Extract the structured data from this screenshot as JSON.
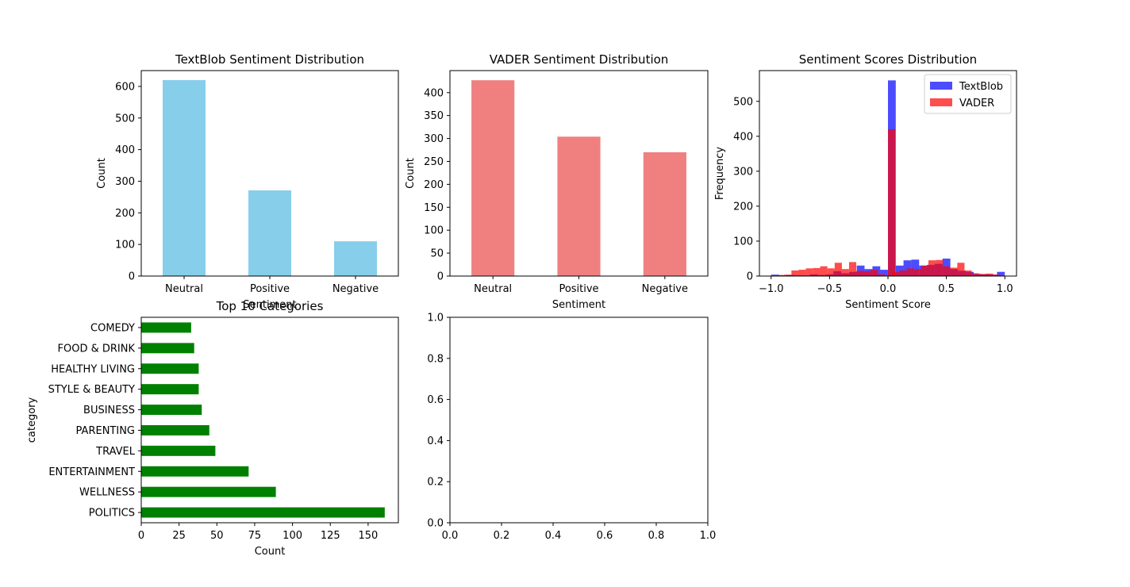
{
  "chart_data": [
    {
      "id": "textblob",
      "type": "bar",
      "title": "TextBlob Sentiment Distribution",
      "xlabel": "Sentiment",
      "ylabel": "Count",
      "categories": [
        "Neutral",
        "Positive",
        "Negative"
      ],
      "values": [
        620,
        271,
        110
      ],
      "ylim": [
        0,
        650
      ],
      "yticks": [
        0,
        100,
        200,
        300,
        400,
        500,
        600
      ],
      "color": "#87CEEB",
      "grid": false
    },
    {
      "id": "vader",
      "type": "bar",
      "title": "VADER Sentiment Distribution",
      "xlabel": "Sentiment",
      "ylabel": "Count",
      "categories": [
        "Neutral",
        "Positive",
        "Negative"
      ],
      "values": [
        427,
        304,
        270
      ],
      "ylim": [
        0,
        448
      ],
      "yticks": [
        0,
        50,
        100,
        150,
        200,
        250,
        300,
        350,
        400
      ],
      "color": "#F08080",
      "grid": false
    },
    {
      "id": "hist",
      "type": "histogram",
      "title": "Sentiment Scores Distribution",
      "xlabel": "Sentiment Score",
      "ylabel": "Frequency",
      "xlim": [
        -1.1,
        1.1
      ],
      "ylim": [
        0,
        588
      ],
      "xticks": [
        -1.0,
        -0.5,
        0.0,
        0.5,
        1.0
      ],
      "yticks": [
        0,
        100,
        200,
        300,
        400,
        500
      ],
      "legend_position": "top-right",
      "series": [
        {
          "name": "TextBlob",
          "color": "#0000FF",
          "bin_width": 0.0667,
          "bins": [
            {
              "x0": -1.0,
              "count": 4
            },
            {
              "x0": -0.933,
              "count": 2
            },
            {
              "x0": -0.867,
              "count": 3
            },
            {
              "x0": -0.8,
              "count": 2
            },
            {
              "x0": -0.733,
              "count": 2
            },
            {
              "x0": -0.667,
              "count": 5
            },
            {
              "x0": -0.6,
              "count": 3
            },
            {
              "x0": -0.533,
              "count": 5
            },
            {
              "x0": -0.467,
              "count": 14
            },
            {
              "x0": -0.4,
              "count": 8
            },
            {
              "x0": -0.333,
              "count": 12
            },
            {
              "x0": -0.267,
              "count": 30
            },
            {
              "x0": -0.2,
              "count": 20
            },
            {
              "x0": -0.133,
              "count": 28
            },
            {
              "x0": -0.067,
              "count": 18
            },
            {
              "x0": 0.0,
              "count": 560
            },
            {
              "x0": 0.067,
              "count": 30
            },
            {
              "x0": 0.133,
              "count": 45
            },
            {
              "x0": 0.2,
              "count": 47
            },
            {
              "x0": 0.267,
              "count": 30
            },
            {
              "x0": 0.333,
              "count": 32
            },
            {
              "x0": 0.4,
              "count": 35
            },
            {
              "x0": 0.467,
              "count": 50
            },
            {
              "x0": 0.533,
              "count": 20
            },
            {
              "x0": 0.6,
              "count": 15
            },
            {
              "x0": 0.667,
              "count": 12
            },
            {
              "x0": 0.733,
              "count": 6
            },
            {
              "x0": 0.8,
              "count": 5
            },
            {
              "x0": 0.867,
              "count": 4
            },
            {
              "x0": 0.933,
              "count": 12
            }
          ]
        },
        {
          "name": "VADER",
          "color": "#FF0000",
          "bin_width": 0.0617,
          "bins": [
            {
              "x0": -0.95,
              "count": 3
            },
            {
              "x0": -0.888,
              "count": 4
            },
            {
              "x0": -0.826,
              "count": 16
            },
            {
              "x0": -0.765,
              "count": 18
            },
            {
              "x0": -0.703,
              "count": 22
            },
            {
              "x0": -0.641,
              "count": 23
            },
            {
              "x0": -0.58,
              "count": 28
            },
            {
              "x0": -0.518,
              "count": 22
            },
            {
              "x0": -0.456,
              "count": 38
            },
            {
              "x0": -0.395,
              "count": 20
            },
            {
              "x0": -0.333,
              "count": 40
            },
            {
              "x0": -0.271,
              "count": 15
            },
            {
              "x0": -0.209,
              "count": 14
            },
            {
              "x0": -0.148,
              "count": 18
            },
            {
              "x0": -0.086,
              "count": 5
            },
            {
              "x0": 0.0,
              "count": 420
            },
            {
              "x0": 0.038,
              "count": 12
            },
            {
              "x0": 0.099,
              "count": 16
            },
            {
              "x0": 0.161,
              "count": 22
            },
            {
              "x0": 0.223,
              "count": 20
            },
            {
              "x0": 0.284,
              "count": 30
            },
            {
              "x0": 0.346,
              "count": 45
            },
            {
              "x0": 0.408,
              "count": 46
            },
            {
              "x0": 0.469,
              "count": 28
            },
            {
              "x0": 0.531,
              "count": 24
            },
            {
              "x0": 0.593,
              "count": 38
            },
            {
              "x0": 0.654,
              "count": 16
            },
            {
              "x0": 0.716,
              "count": 8
            },
            {
              "x0": 0.778,
              "count": 6
            },
            {
              "x0": 0.839,
              "count": 7
            },
            {
              "x0": 0.901,
              "count": 4
            }
          ]
        }
      ]
    },
    {
      "id": "categories",
      "type": "barh",
      "title": "Top 10 Categories",
      "xlabel": "Count",
      "ylabel": "category",
      "categories": [
        "POLITICS",
        "WELLNESS",
        "ENTERTAINMENT",
        "TRAVEL",
        "PARENTING",
        "BUSINESS",
        "STYLE & BEAUTY",
        "HEALTHY LIVING",
        "FOOD & DRINK",
        "COMEDY"
      ],
      "values": [
        161,
        89,
        71,
        49,
        45,
        40,
        38,
        38,
        35,
        33
      ],
      "xlim": [
        0,
        170
      ],
      "xticks": [
        0,
        25,
        50,
        75,
        100,
        125,
        150
      ],
      "color": "#008000",
      "grid": false
    },
    {
      "id": "empty",
      "type": "empty",
      "xlim": [
        0,
        1
      ],
      "ylim": [
        0,
        1
      ],
      "xticks": [
        "0.0",
        "0.2",
        "0.4",
        "0.6",
        "0.8",
        "1.0"
      ],
      "yticks": [
        "0.0",
        "0.2",
        "0.4",
        "0.6",
        "0.8",
        "1.0"
      ]
    }
  ]
}
